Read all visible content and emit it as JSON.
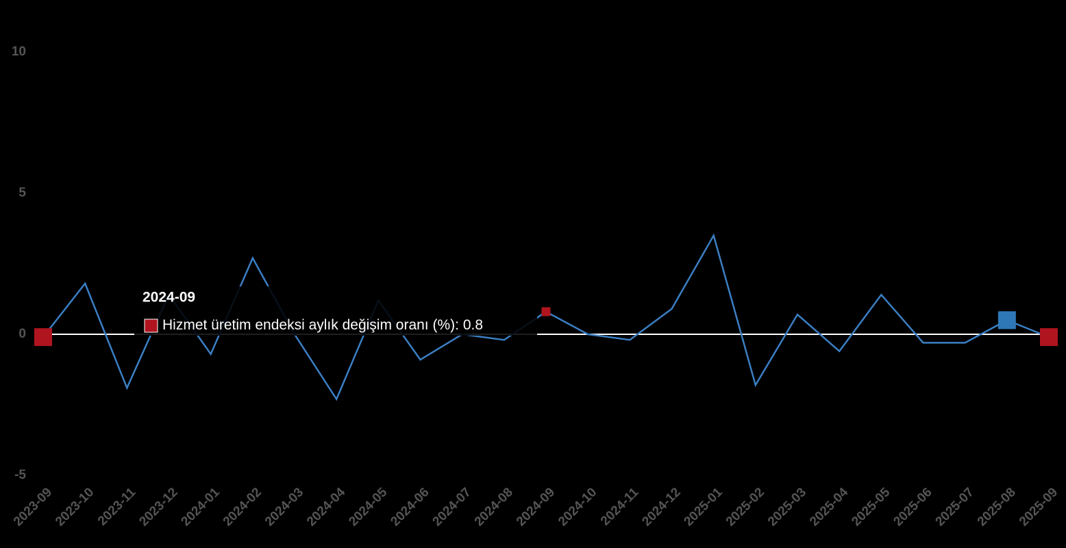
{
  "chart_data": {
    "type": "line",
    "categories": [
      "2023-09",
      "2023-10",
      "2023-11",
      "2023-12",
      "2024-01",
      "2024-02",
      "2024-03",
      "2024-04",
      "2024-05",
      "2024-06",
      "2024-07",
      "2024-08",
      "2024-09",
      "2024-10",
      "2024-11",
      "2024-12",
      "2025-01",
      "2025-02",
      "2025-03",
      "2025-04",
      "2025-05",
      "2025-06",
      "2025-07",
      "2025-08",
      "2025-09"
    ],
    "series": [
      {
        "name": "Hizmet üretim endeksi aylık değişim oranı (%)",
        "color": "#3b7fc4",
        "values": [
          -0.1,
          1.8,
          -1.9,
          1.4,
          -0.7,
          2.7,
          0.0,
          -2.3,
          1.2,
          -0.9,
          0.0,
          -0.2,
          0.8,
          0.0,
          -0.2,
          0.9,
          3.5,
          -1.8,
          0.7,
          -0.6,
          1.4,
          -0.3,
          -0.3,
          0.5,
          -0.1
        ]
      }
    ],
    "ylim": [
      -5,
      10
    ],
    "yticks": [
      -5,
      0,
      5,
      10
    ]
  }
}
